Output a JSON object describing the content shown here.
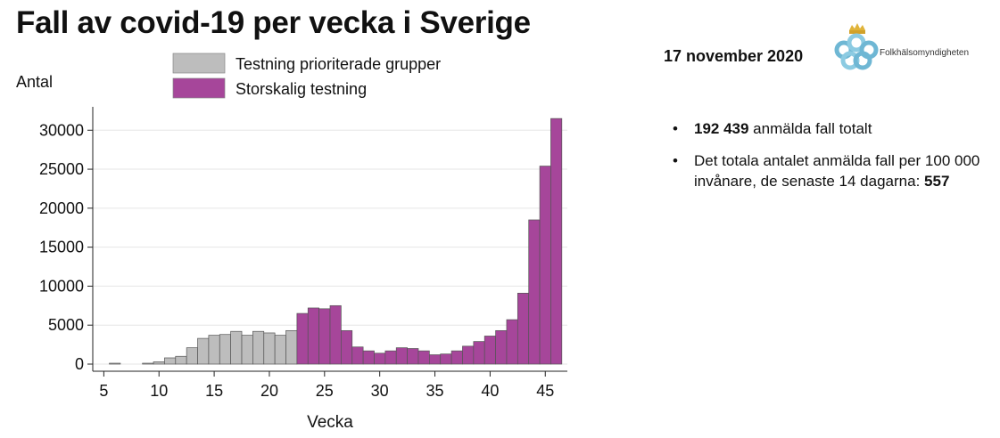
{
  "title": "Fall av covid-19 per vecka i Sverige",
  "date": "17 november 2020",
  "logo_text": "Folkhälsomyndigheten",
  "facts": [
    {
      "bold": "192 439",
      "text": " anmälda fall totalt",
      "suffix": ""
    },
    {
      "bold": "557",
      "text": "Det totala antalet anmälda fall per 100 000 invånare, de senaste 14 dagarna: ",
      "bold_last": true
    }
  ],
  "colors": {
    "prioritized": "#bdbdbd",
    "large_scale": "#a6469a",
    "grid": "#e6e6e6"
  },
  "chart_data": {
    "type": "bar",
    "ylabel": "Antal",
    "xlabel": "Vecka",
    "ylim": [
      0,
      33000
    ],
    "xlim": [
      4,
      47
    ],
    "yticks": [
      0,
      5000,
      10000,
      15000,
      20000,
      25000,
      30000
    ],
    "xticks": [
      5,
      10,
      15,
      20,
      25,
      30,
      35,
      40,
      45
    ],
    "legend": [
      {
        "name": "Testning prioriterade grupper"
      },
      {
        "name": "Storskalig testning"
      }
    ],
    "series": [
      {
        "name": "Testning prioriterade grupper",
        "x": [
          6,
          9,
          10,
          11,
          12,
          13,
          14,
          15,
          16,
          17,
          18,
          19,
          20,
          21,
          22
        ],
        "values": [
          60,
          100,
          300,
          800,
          1000,
          2100,
          3300,
          3700,
          3800,
          4200,
          3700,
          4200,
          4000,
          3700,
          4300
        ]
      },
      {
        "name": "Storskalig testning",
        "x": [
          23,
          24,
          25,
          26,
          27,
          28,
          29,
          30,
          31,
          32,
          33,
          34,
          35,
          36,
          37,
          38,
          39,
          40,
          41,
          42,
          43,
          44,
          45,
          46
        ],
        "values": [
          6500,
          7200,
          7100,
          7500,
          4300,
          2200,
          1700,
          1400,
          1700,
          2100,
          2000,
          1700,
          1200,
          1300,
          1700,
          2300,
          2900,
          3600,
          4300,
          5700,
          9100,
          18500,
          25400,
          31500
        ]
      }
    ]
  }
}
